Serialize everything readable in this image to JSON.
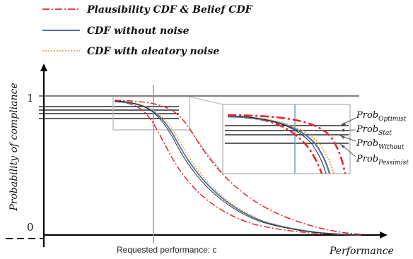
{
  "legend": {
    "item1": "Plausibility CDF & Belief CDF",
    "item2": "CDF without noise",
    "item3": "CDF with aleatory noise"
  },
  "axes": {
    "y_label": "Probability of compliance",
    "x_label": "Performance",
    "y_tick_top": "1",
    "y_tick_bottom": "0",
    "x_marker_label": "Requested performance: c"
  },
  "probs": [
    {
      "base": "Prob",
      "sub": "Optimist"
    },
    {
      "base": "Prob",
      "sub": "Stat"
    },
    {
      "base": "Prob",
      "sub": "Without"
    },
    {
      "base": "Prob",
      "sub": "Pessimist"
    }
  ],
  "colors": {
    "red": "#e8252b",
    "blue": "#4a72a6",
    "orange": "#f0a03c",
    "axis": "#000000",
    "marker": "#6fa0d8",
    "box": "#bdbdbd"
  }
}
